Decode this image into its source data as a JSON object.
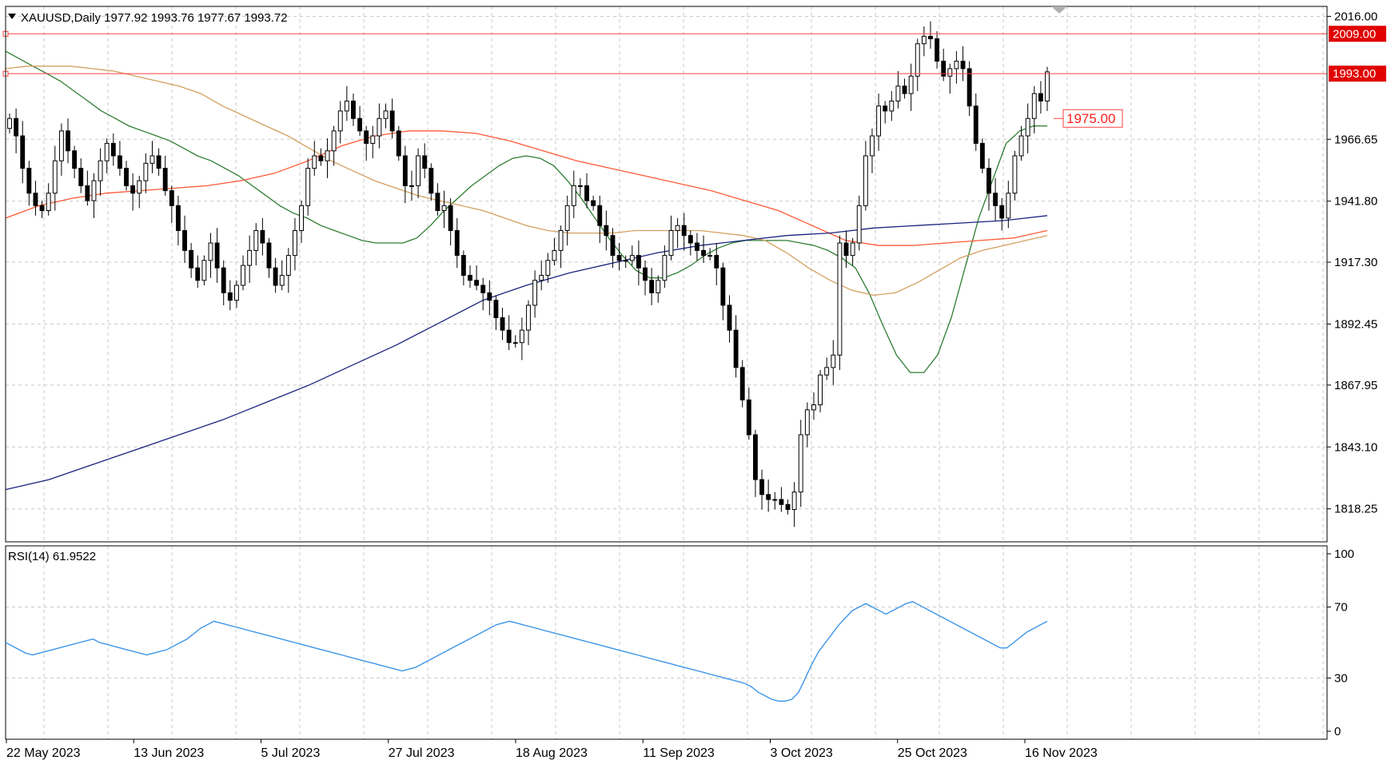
{
  "header": {
    "symbol_info": "XAUUSD,Daily  1977.92 1993.76 1977.67 1993.72"
  },
  "colors": {
    "candle_bull": "#ffffff",
    "candle_bear": "#000000",
    "grid": "#c8c8c8",
    "ma_green": "#2e7d32",
    "ma_tan": "#d2a060",
    "ma_red": "#ff5a36",
    "ma_blue": "#1a237e",
    "rsi": "#3d95e8",
    "level_line": "#ff4040"
  },
  "chart_data": [
    {
      "type": "candlestick",
      "title": "",
      "symbol": "XAUUSD",
      "timeframe": "Daily",
      "ohlc_header": {
        "open": 1977.92,
        "high": 1993.76,
        "low": 1977.67,
        "close": 1993.72
      },
      "ylim": [
        1805,
        2020
      ],
      "y_ticks": [
        "2016.00",
        "1966.65",
        "1941.80",
        "1917.30",
        "1892.45",
        "1867.95",
        "1843.10",
        "1818.25"
      ],
      "x_tick_labels": [
        "22 May 2023",
        "13 Jun 2023",
        "5 Jul 2023",
        "27 Jul 2023",
        "18 Aug 2023",
        "11 Sep 2023",
        "3 Oct 2023",
        "25 Oct 2023",
        "16 Nov 2023"
      ],
      "grid": true,
      "levels": [
        {
          "value": 2009.0,
          "label": "2009.00",
          "style": "boxed-filled"
        },
        {
          "value": 1993.0,
          "label": "1993.00",
          "style": "boxed-filled"
        },
        {
          "value": 1975.0,
          "label": "1975.00",
          "style": "arrow-outline"
        }
      ],
      "series_close": [
        1975,
        1968,
        1955,
        1945,
        1940,
        1938,
        1945,
        1958,
        1970,
        1962,
        1955,
        1948,
        1942,
        1950,
        1958,
        1965,
        1960,
        1955,
        1948,
        1945,
        1950,
        1957,
        1960,
        1955,
        1946,
        1940,
        1930,
        1922,
        1915,
        1910,
        1918,
        1925,
        1915,
        1905,
        1902,
        1908,
        1916,
        1922,
        1930,
        1925,
        1915,
        1908,
        1912,
        1920,
        1930,
        1940,
        1955,
        1960,
        1958,
        1962,
        1970,
        1978,
        1982,
        1975,
        1970,
        1965,
        1968,
        1975,
        1978,
        1970,
        1960,
        1948,
        1948,
        1960,
        1955,
        1945,
        1938,
        1940,
        1930,
        1920,
        1912,
        1910,
        1908,
        1905,
        1902,
        1895,
        1890,
        1885,
        1885,
        1890,
        1900,
        1910,
        1912,
        1918,
        1922,
        1930,
        1940,
        1948,
        1948,
        1942,
        1940,
        1932,
        1928,
        1920,
        1918,
        1918,
        1920,
        1915,
        1910,
        1905,
        1910,
        1920,
        1930,
        1932,
        1928,
        1925,
        1922,
        1920,
        1920,
        1915,
        1900,
        1890,
        1875,
        1862,
        1848,
        1830,
        1824,
        1822,
        1822,
        1820,
        1818,
        1825,
        1848,
        1858,
        1860,
        1872,
        1875,
        1880,
        1925,
        1920,
        1925,
        1940,
        1960,
        1968,
        1980,
        1978,
        1982,
        1988,
        1985,
        1992,
        2005,
        2008,
        2007,
        1998,
        1992,
        1995,
        1998,
        1995,
        1980,
        1965,
        1955,
        1945,
        1940,
        1935,
        1945,
        1960,
        1968,
        1975,
        1985,
        1982,
        1993.72
      ],
      "series_ma_green": [
        2002,
        1999,
        1996,
        1993,
        1990,
        1986,
        1982,
        1978,
        1975,
        1972,
        1970,
        1968,
        1966,
        1963,
        1960,
        1958,
        1955,
        1952,
        1948,
        1944,
        1940,
        1937,
        1935,
        1932,
        1930,
        1928,
        1926,
        1925,
        1925,
        1925,
        1927,
        1932,
        1938,
        1943,
        1948,
        1952,
        1956,
        1959,
        1960,
        1959,
        1956,
        1950,
        1943,
        1935,
        1927,
        1920,
        1914,
        1911,
        1911,
        1913,
        1916,
        1920,
        1923,
        1925,
        1926,
        1926,
        1926,
        1926,
        1925,
        1924,
        1922,
        1919,
        1915,
        1905,
        1892,
        1880,
        1873,
        1873,
        1880,
        1895,
        1915,
        1935,
        1950,
        1965,
        1970,
        1972,
        1972
      ],
      "series_ma_tan": [
        1995,
        1996,
        1996,
        1996,
        1995,
        1994,
        1992,
        1990,
        1988,
        1985,
        1980,
        1976,
        1972,
        1968,
        1963,
        1958,
        1954,
        1950,
        1947,
        1944,
        1942,
        1940,
        1938,
        1935,
        1932,
        1930,
        1929,
        1929,
        1929,
        1930,
        1930,
        1930,
        1930,
        1929,
        1928,
        1926,
        1921,
        1915,
        1910,
        1906,
        1904,
        1905,
        1909,
        1914,
        1919,
        1922,
        1924,
        1926,
        1928
      ],
      "series_ma_red": [
        1935,
        1940,
        1943,
        1945,
        1946,
        1947,
        1948,
        1950,
        1953,
        1958,
        1964,
        1968,
        1970,
        1970,
        1969,
        1966,
        1962,
        1958,
        1955,
        1952,
        1949,
        1946,
        1942,
        1938,
        1932,
        1926,
        1924,
        1924,
        1925,
        1926,
        1927,
        1930
      ],
      "series_ma_blue": [
        1826,
        1830,
        1836,
        1842,
        1848,
        1854,
        1861,
        1868,
        1876,
        1884,
        1893,
        1902,
        1908,
        1913,
        1917,
        1921,
        1924,
        1926,
        1928,
        1929,
        1931,
        1932,
        1933,
        1934,
        1936
      ],
      "rsi_panel": {
        "label": "RSI(14) 61.9522",
        "ylim": [
          0,
          100
        ],
        "y_ticks": [
          "100",
          "70",
          "30",
          "0"
        ],
        "values": [
          50,
          48,
          46,
          44,
          43,
          44,
          45,
          46,
          47,
          48,
          49,
          50,
          51,
          52,
          50,
          49,
          48,
          47,
          46,
          45,
          44,
          43,
          44,
          45,
          46,
          48,
          50,
          52,
          55,
          58,
          60,
          62,
          61,
          60,
          59,
          58,
          57,
          56,
          55,
          54,
          53,
          52,
          51,
          50,
          49,
          48,
          47,
          46,
          45,
          44,
          43,
          42,
          41,
          40,
          39,
          38,
          37,
          36,
          35,
          34,
          35,
          36,
          38,
          40,
          42,
          44,
          46,
          48,
          50,
          52,
          54,
          56,
          58,
          60,
          61,
          62,
          61,
          60,
          59,
          58,
          57,
          56,
          55,
          54,
          53,
          52,
          51,
          50,
          49,
          48,
          47,
          46,
          45,
          44,
          43,
          42,
          41,
          40,
          39,
          38,
          37,
          36,
          35,
          34,
          33,
          32,
          31,
          30,
          29,
          28,
          27,
          25,
          22,
          20,
          18,
          17,
          17,
          18,
          22,
          30,
          38,
          45,
          50,
          55,
          60,
          64,
          68,
          70,
          72,
          70,
          68,
          66,
          68,
          70,
          72,
          73,
          71,
          69,
          67,
          65,
          63,
          61,
          59,
          57,
          55,
          53,
          51,
          49,
          47,
          47,
          50,
          53,
          56,
          58,
          60,
          61.9522
        ]
      }
    }
  ]
}
